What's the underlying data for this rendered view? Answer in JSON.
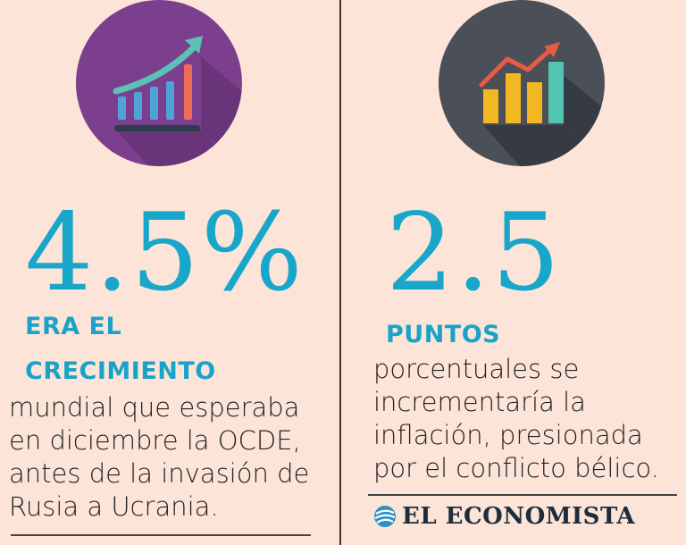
{
  "left": {
    "big_number": "4.5%",
    "headline_line1": "ERA EL",
    "headline_line2": "CRECIMIENTO",
    "body_lines": [
      "mundial que esperaba",
      "en diciembre la OCDE,",
      "antes de la invasión de",
      "Rusia a Ucrania."
    ],
    "icon": "growth-bar-chart-icon",
    "icon_bg": "#7b3f8e"
  },
  "right": {
    "big_number": "2.5",
    "headline": "PUNTOS",
    "body_lines": [
      "porcentuales se",
      "incrementaría la",
      "inflación, presionada",
      "por el conflicto bélico."
    ],
    "icon": "bar-chart-trend-icon",
    "icon_bg": "#4b4f58"
  },
  "brand": {
    "name": "EL ECONOMISTA",
    "logo_icon": "globe-logo-icon"
  },
  "colors": {
    "background": "#fce5d8",
    "accent": "#19a6cb",
    "text": "#222222"
  }
}
